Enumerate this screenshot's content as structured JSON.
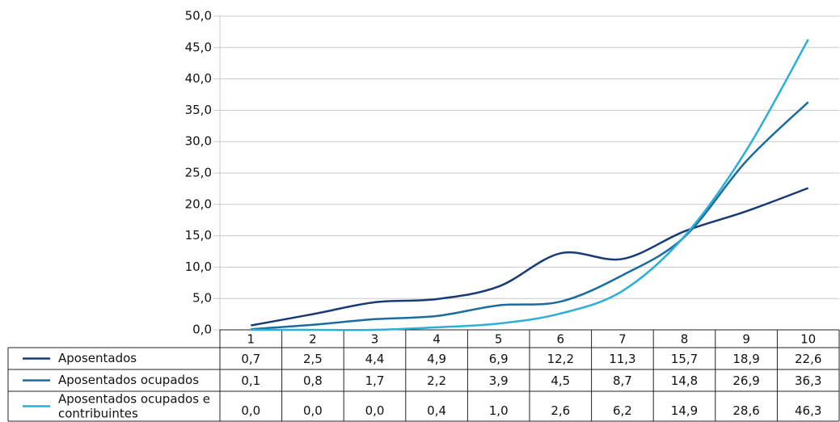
{
  "chart_data": {
    "type": "line",
    "categories": [
      "1",
      "2",
      "3",
      "4",
      "5",
      "6",
      "7",
      "8",
      "9",
      "10"
    ],
    "series": [
      {
        "name": "Aposentados",
        "color": "#173a78",
        "values": [
          0.7,
          2.5,
          4.4,
          4.9,
          6.9,
          12.2,
          11.3,
          15.7,
          18.9,
          22.6
        ],
        "value_labels": [
          "0,7",
          "2,5",
          "4,4",
          "4,9",
          "6,9",
          "12,2",
          "11,3",
          "15,7",
          "18,9",
          "22,6"
        ]
      },
      {
        "name": "Aposentados ocupados",
        "color": "#1b6c9e",
        "values": [
          0.1,
          0.8,
          1.7,
          2.2,
          3.9,
          4.5,
          8.7,
          14.8,
          26.9,
          36.3
        ],
        "value_labels": [
          "0,1",
          "0,8",
          "1,7",
          "2,2",
          "3,9",
          "4,5",
          "8,7",
          "14,8",
          "26,9",
          "36,3"
        ]
      },
      {
        "name": "Aposentados ocupados e contribuintes",
        "color": "#29afd9",
        "values": [
          0.0,
          0.0,
          0.0,
          0.4,
          1.0,
          2.6,
          6.2,
          14.9,
          28.6,
          46.3
        ],
        "value_labels": [
          "0,0",
          "0,0",
          "0,0",
          "0,4",
          "1,0",
          "2,6",
          "6,2",
          "14,9",
          "28,6",
          "46,3"
        ]
      }
    ],
    "ylim": [
      0,
      50
    ],
    "yticks": [
      {
        "value": 0,
        "label": "0,0"
      },
      {
        "value": 5,
        "label": "5,0"
      },
      {
        "value": 10,
        "label": "10,0"
      },
      {
        "value": 15,
        "label": "15,0"
      },
      {
        "value": 20,
        "label": "20,0"
      },
      {
        "value": 25,
        "label": "25,0"
      },
      {
        "value": 30,
        "label": "30,0"
      },
      {
        "value": 35,
        "label": "35,0"
      },
      {
        "value": 40,
        "label": "40,0"
      },
      {
        "value": 45,
        "label": "45,0"
      },
      {
        "value": 50,
        "label": "50,0"
      }
    ],
    "grid": true
  }
}
